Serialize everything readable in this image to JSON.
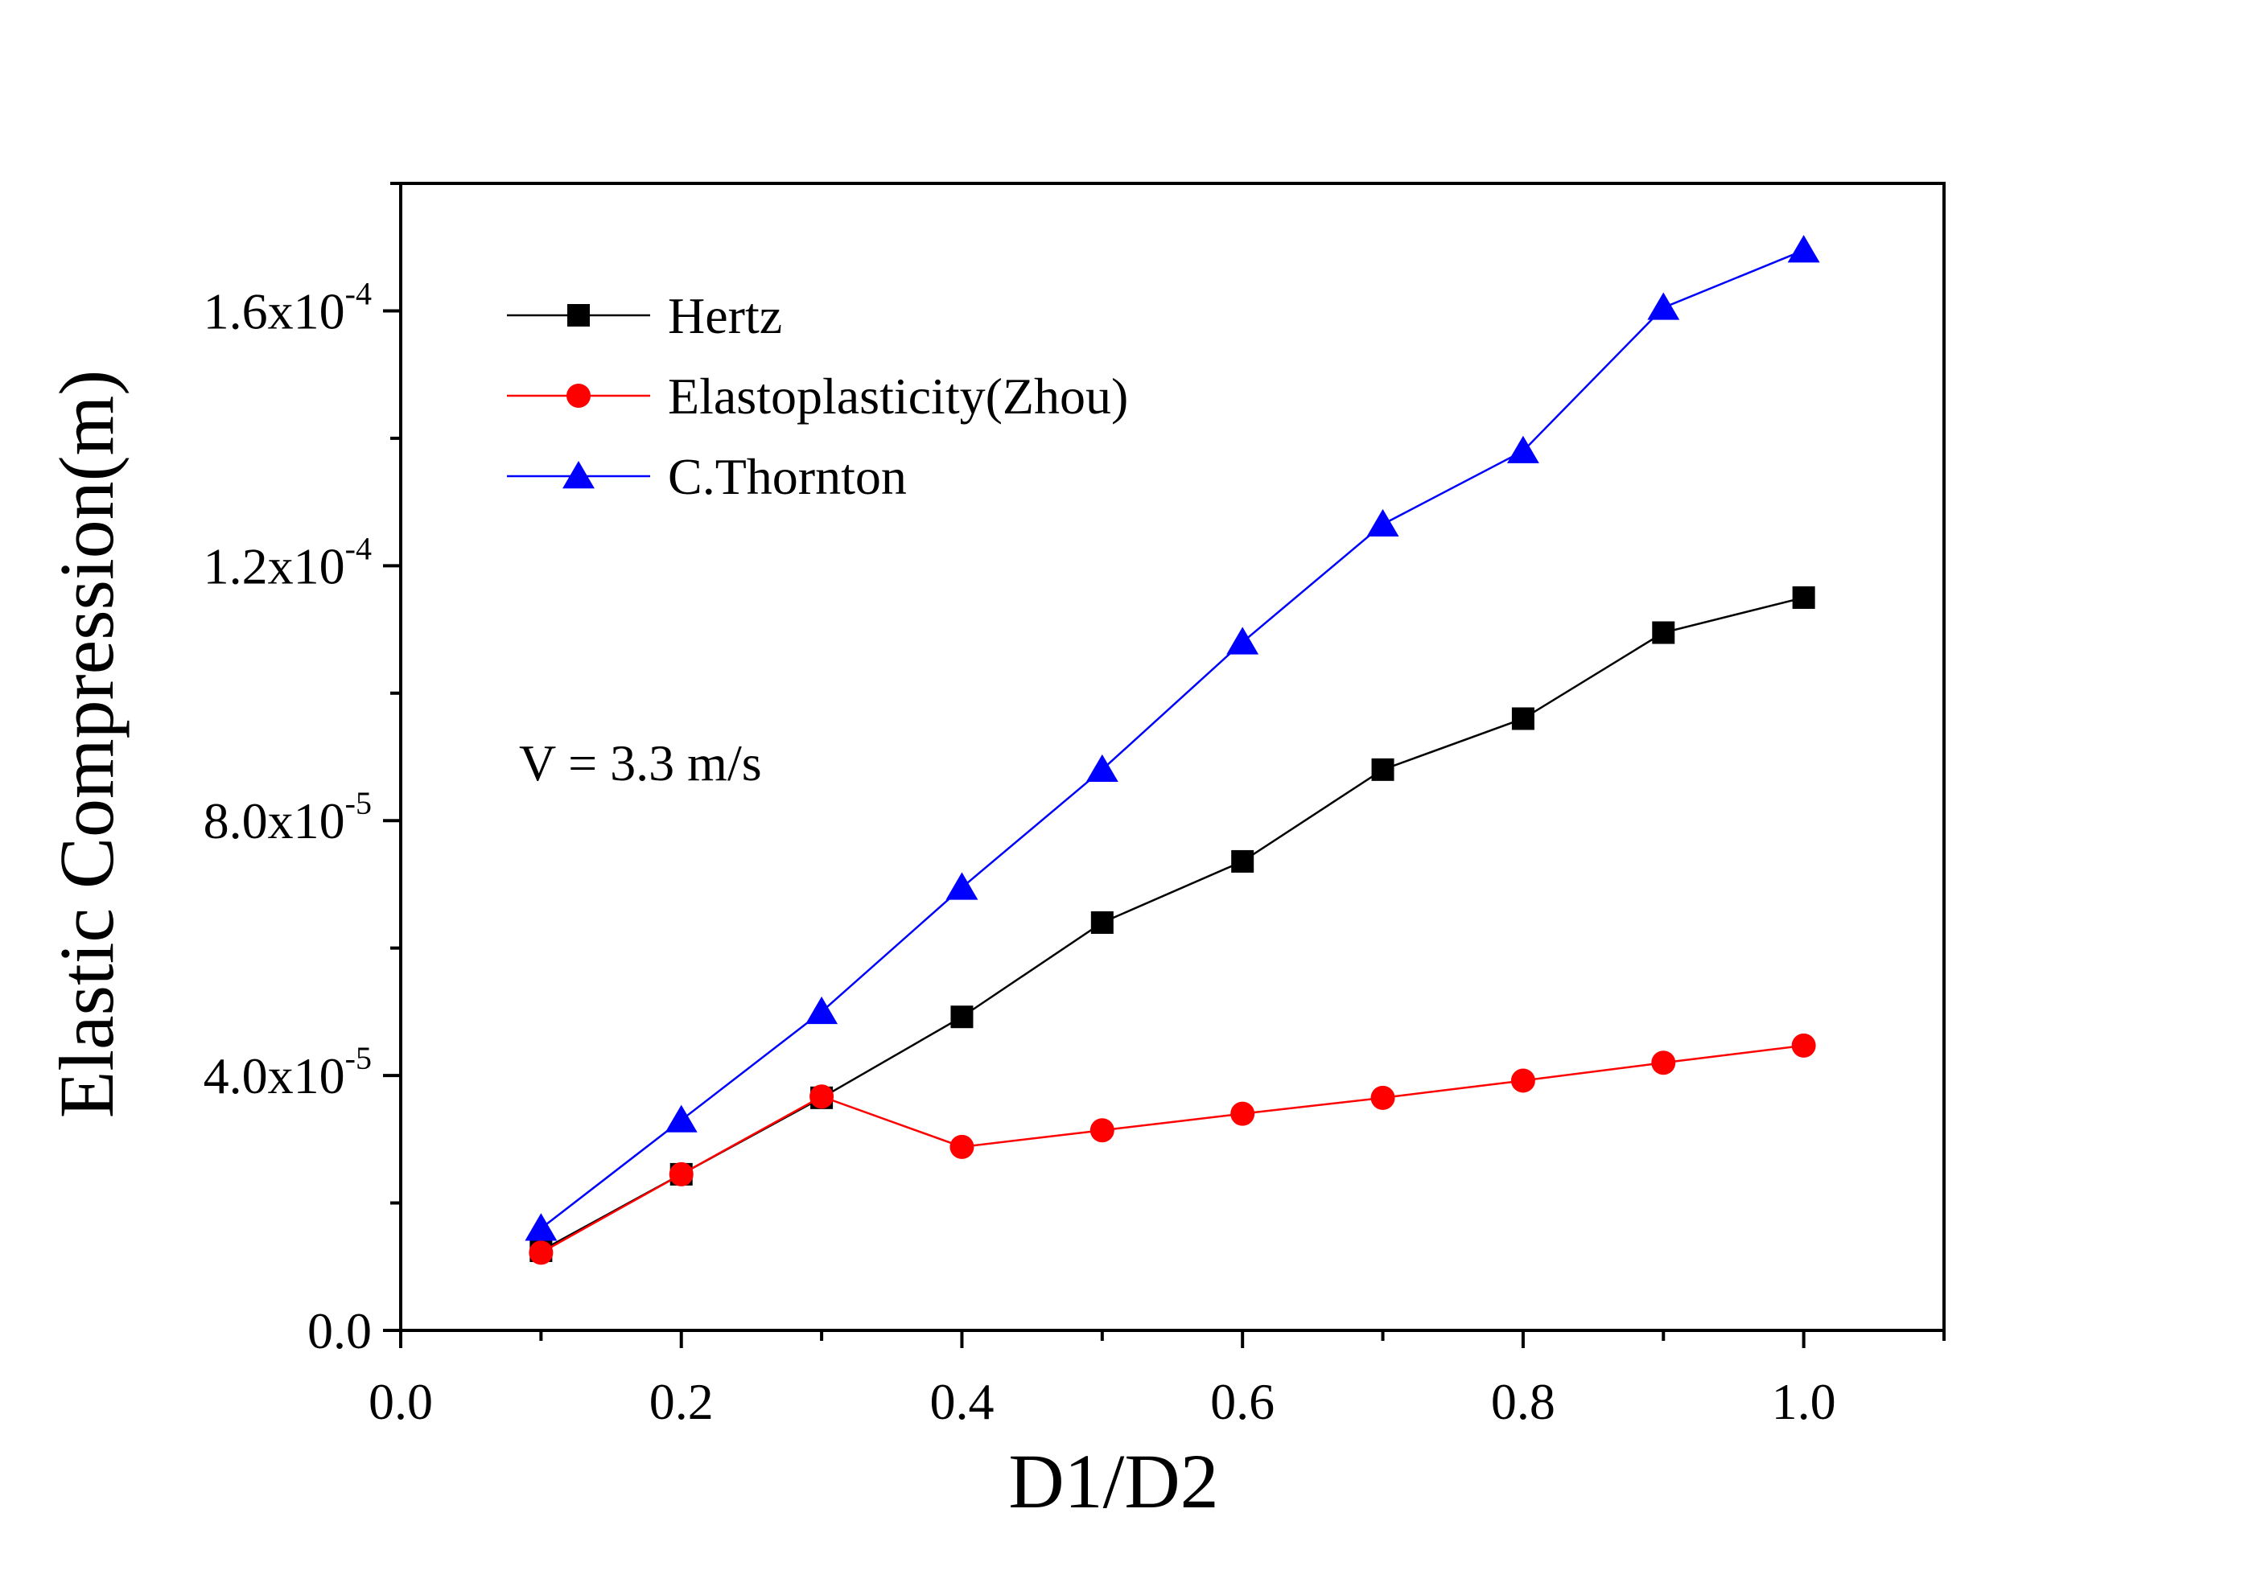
{
  "chart_data": {
    "type": "line",
    "xlabel": "D1/D2",
    "ylabel": "Elastic Compression(m)",
    "xlim": [
      0.0,
      1.1
    ],
    "ylim": [
      0,
      0.00018
    ],
    "x_ticks": [
      {
        "value": 0.0,
        "label": "0.0"
      },
      {
        "value": 0.2,
        "label": "0.2"
      },
      {
        "value": 0.4,
        "label": "0.4"
      },
      {
        "value": 0.6,
        "label": "0.6"
      },
      {
        "value": 0.8,
        "label": "0.8"
      },
      {
        "value": 1.0,
        "label": "1.0"
      }
    ],
    "y_ticks": [
      {
        "value": 0,
        "mantissa": "0.0",
        "exponent": ""
      },
      {
        "value": 4e-05,
        "mantissa": "4.0x10",
        "exponent": "-5"
      },
      {
        "value": 8e-05,
        "mantissa": "8.0x10",
        "exponent": "-5"
      },
      {
        "value": 0.00012,
        "mantissa": "1.2x10",
        "exponent": "-4"
      },
      {
        "value": 0.00016,
        "mantissa": "1.6x10",
        "exponent": "-4"
      }
    ],
    "x": [
      0.1,
      0.2,
      0.3,
      0.4,
      0.5,
      0.6,
      0.7,
      0.8,
      0.9,
      1.0
    ],
    "series": [
      {
        "name": "Hertz",
        "color": "#000000",
        "marker": "square",
        "values": [
          1.25e-05,
          2.45e-05,
          3.65e-05,
          4.92e-05,
          6.4e-05,
          7.36e-05,
          8.8e-05,
          9.6e-05,
          0.0001095,
          0.000115
        ]
      },
      {
        "name": "Elastoplasticity(Zhou)",
        "color": "#ff0000",
        "marker": "circle",
        "values": [
          1.22e-05,
          2.45e-05,
          3.67e-05,
          2.88e-05,
          3.14e-05,
          3.4e-05,
          3.65e-05,
          3.92e-05,
          4.2e-05,
          4.47e-05
        ]
      },
      {
        "name": "C.Thornton",
        "color": "#0000ff",
        "marker": "triangle",
        "values": [
          1.6e-05,
          3.3e-05,
          5e-05,
          6.95e-05,
          8.8e-05,
          0.000108,
          0.0001265,
          0.000138,
          0.0001605,
          0.0001695
        ]
      }
    ],
    "annotation": "V = 3.3 m/s",
    "grid": false,
    "legend_position": "top-left"
  }
}
